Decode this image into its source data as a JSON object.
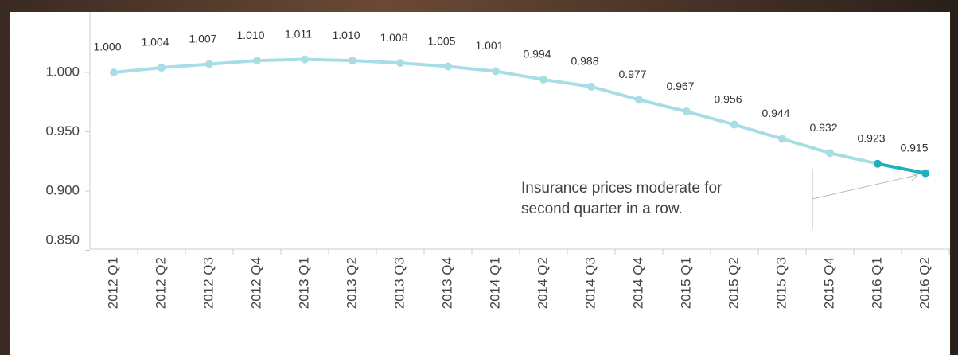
{
  "chart_data": {
    "type": "line",
    "categories": [
      "2012 Q1",
      "2012 Q2",
      "2012 Q3",
      "2012 Q4",
      "2013 Q1",
      "2013 Q2",
      "2013 Q3",
      "2013 Q4",
      "2014 Q1",
      "2014 Q2",
      "2014 Q3",
      "2014 Q4",
      "2015 Q1",
      "2015 Q2",
      "2015 Q3",
      "2015 Q4",
      "2016 Q1",
      "2016 Q2"
    ],
    "series": [
      {
        "color": "#a8dde6",
        "highlight_color": "#1fb0bf",
        "values": [
          1.0,
          1.004,
          1.007,
          1.01,
          1.011,
          1.01,
          1.008,
          1.005,
          1.001,
          0.994,
          0.988,
          0.977,
          0.967,
          0.956,
          0.944,
          0.932,
          0.923,
          0.915
        ],
        "value_labels": [
          "1.000",
          "1.004",
          "1.007",
          "1.010",
          "1.011",
          "1.010",
          "1.008",
          "1.005",
          "1.001",
          "0.994",
          "0.988",
          "0.977",
          "0.967",
          "0.956",
          "0.944",
          "0.932",
          "0.923",
          "0.915"
        ]
      }
    ],
    "ylim": [
      0.85,
      1.05
    ],
    "yticks": [
      {
        "value": 0.85,
        "label": "0.850"
      },
      {
        "value": 0.9,
        "label": "0.900"
      },
      {
        "value": 0.95,
        "label": "0.950"
      },
      {
        "value": 1,
        "label": "1.000"
      }
    ],
    "annotation": [
      "Insurance prices moderate for",
      "second quarter in a row."
    ]
  }
}
